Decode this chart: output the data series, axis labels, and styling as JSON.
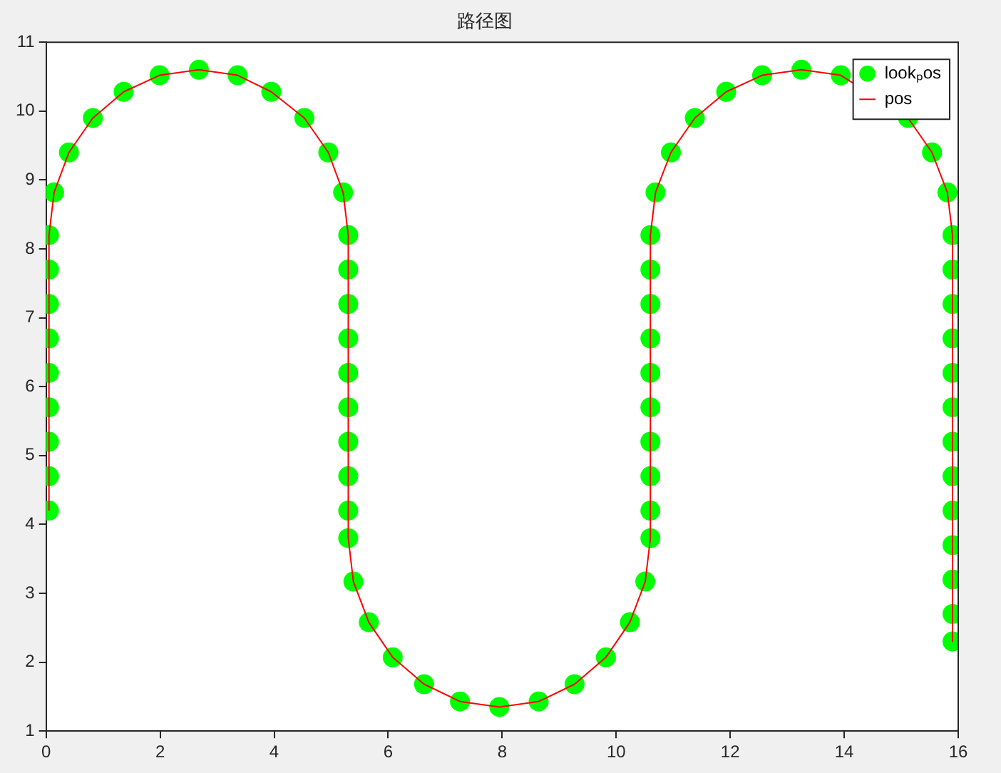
{
  "chart_data": {
    "type": "line",
    "title": "路径图",
    "legend": "top right",
    "grid": false,
    "xlim": [
      0,
      16
    ],
    "xticks": [
      0,
      2,
      4,
      6,
      8,
      10,
      12,
      14,
      16
    ],
    "ylim": [
      1,
      11
    ],
    "yticks": [
      1,
      2,
      3,
      4,
      5,
      6,
      7,
      8,
      9,
      10,
      11
    ],
    "x": [
      0.05,
      0.05,
      0.05,
      0.05,
      0.05,
      0.05,
      0.05,
      0.05,
      0.05,
      0.14,
      0.4,
      0.82,
      1.36,
      1.99,
      2.68,
      3.36,
      3.95,
      4.53,
      4.95,
      5.21,
      5.3,
      5.3,
      5.3,
      5.3,
      5.3,
      5.3,
      5.3,
      5.3,
      5.3,
      5.3,
      5.39,
      5.66,
      6.08,
      6.63,
      7.26,
      7.95,
      8.64,
      9.27,
      9.82,
      10.24,
      10.51,
      10.6,
      10.6,
      10.6,
      10.6,
      10.6,
      10.6,
      10.6,
      10.6,
      10.6,
      10.6,
      10.69,
      10.96,
      11.38,
      11.93,
      12.56,
      13.25,
      13.94,
      14.57,
      15.12,
      15.54,
      15.81,
      15.9,
      15.9,
      15.9,
      15.9,
      15.9,
      15.9,
      15.9,
      15.9,
      15.9,
      15.9,
      15.9,
      15.9,
      15.9
    ],
    "series": [
      {
        "name": "lookₚos",
        "type": "scatter",
        "marker": "circle",
        "color": "#00ff00",
        "values": [
          4.2,
          4.7,
          5.2,
          5.7,
          6.2,
          6.7,
          7.2,
          7.7,
          8.2,
          8.82,
          9.4,
          9.9,
          10.28,
          10.52,
          10.6,
          10.52,
          10.28,
          9.9,
          9.4,
          8.82,
          8.2,
          7.7,
          7.2,
          6.7,
          6.2,
          5.7,
          5.2,
          4.7,
          4.2,
          3.8,
          3.17,
          2.58,
          2.07,
          1.68,
          1.43,
          1.35,
          1.43,
          1.68,
          2.07,
          2.58,
          3.17,
          3.8,
          4.2,
          4.7,
          5.2,
          5.7,
          6.2,
          6.7,
          7.2,
          7.7,
          8.2,
          8.82,
          9.4,
          9.9,
          10.28,
          10.52,
          10.6,
          10.52,
          null,
          9.9,
          9.4,
          8.82,
          8.2,
          7.7,
          7.2,
          6.7,
          6.2,
          5.7,
          5.2,
          4.7,
          4.2,
          3.7,
          3.2,
          2.7,
          2.3
        ]
      },
      {
        "name": "pos",
        "type": "line",
        "marker": "none",
        "line_style": "solid",
        "color": "#ff0000",
        "values": [
          4.2,
          4.7,
          5.2,
          5.7,
          6.2,
          6.7,
          7.2,
          7.7,
          8.2,
          8.82,
          9.4,
          9.9,
          10.28,
          10.52,
          10.6,
          10.52,
          10.28,
          9.9,
          9.4,
          8.82,
          8.2,
          7.7,
          7.2,
          6.7,
          6.2,
          5.7,
          5.2,
          4.7,
          4.2,
          3.8,
          3.17,
          2.58,
          2.07,
          1.68,
          1.43,
          1.35,
          1.43,
          1.68,
          2.07,
          2.58,
          3.17,
          3.8,
          4.2,
          4.7,
          5.2,
          5.7,
          6.2,
          6.7,
          7.2,
          7.7,
          8.2,
          8.82,
          9.4,
          9.9,
          10.28,
          10.52,
          10.6,
          10.52,
          null,
          9.9,
          9.4,
          8.82,
          8.2,
          7.7,
          7.2,
          6.7,
          6.2,
          5.7,
          5.2,
          4.7,
          4.2,
          3.7,
          3.2,
          2.7,
          2.3
        ]
      }
    ]
  }
}
